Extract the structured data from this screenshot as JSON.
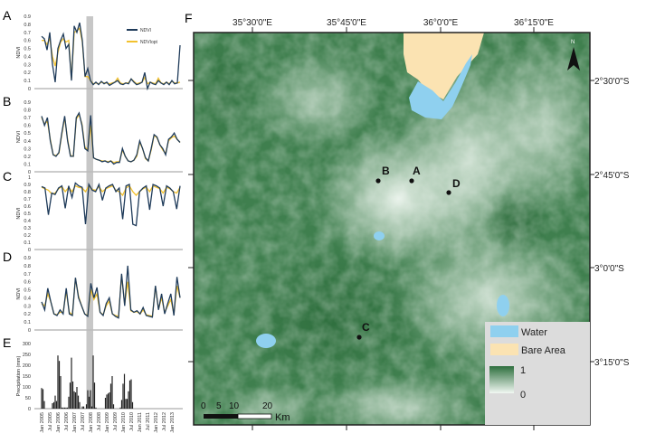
{
  "colors": {
    "ndvi": "#1f3b5a",
    "ndvi_opt": "#f2c12e",
    "band": "#bdbdbd",
    "water": "#8fd0ef",
    "bare": "#fbe3b2",
    "green_dark": "#2e6f3e",
    "green_light": "#e6f2e8",
    "bars": "#222222"
  },
  "timeseries": {
    "x_tick_labels": [
      "Jan 2005",
      "Jul 2005",
      "Jan 2006",
      "Jul 2006",
      "Jan 2007",
      "Jul 2007",
      "Jan 2008",
      "Jul 2008",
      "Jan 2009",
      "Jul 2009",
      "Jan 2010",
      "Jul 2010",
      "Jan 2011",
      "Jul 2011",
      "Jan 2012",
      "Jul 2012",
      "Jan 2013"
    ],
    "highlight_period": [
      "Oct 2007",
      "Mar 2008"
    ],
    "legend": {
      "ndvi": "NDVI",
      "ndvi_opt": "NDVIopt"
    }
  },
  "chart_data": [
    {
      "panel": "A",
      "type": "line",
      "ylabel": "NDVI",
      "ylim": [
        0,
        0.9
      ],
      "yticks": [
        "0",
        "0.1",
        "0.2",
        "0.3",
        "0.4",
        "0.5",
        "0.6",
        "0.7",
        "0.8",
        "0.9"
      ],
      "x_range": [
        "Jan 2005",
        "Jul 2013"
      ],
      "series": [
        {
          "name": "NDVI",
          "values": [
            0.65,
            0.62,
            0.48,
            0.7,
            0.3,
            0.08,
            0.5,
            0.6,
            0.68,
            0.5,
            0.55,
            0.1,
            0.78,
            0.7,
            0.82,
            0.6,
            0.15,
            0.25,
            0.1,
            0.05,
            0.08,
            0.05,
            0.09,
            0.06,
            0.08,
            0.04,
            0.06,
            0.08,
            0.1,
            0.06,
            0.05,
            0.07,
            0.06,
            0.12,
            0.08,
            0.05,
            0.06,
            0.08,
            0.2,
            0.0,
            0.08,
            0.06,
            0.05,
            0.1,
            0.07,
            0.05,
            0.08,
            0.05,
            0.1,
            0.06,
            0.07,
            0.54
          ]
        },
        {
          "name": "NDVIopt",
          "values": [
            0.6,
            0.6,
            0.55,
            0.62,
            0.4,
            0.28,
            0.45,
            0.58,
            0.62,
            0.58,
            0.6,
            0.12,
            0.7,
            0.72,
            0.75,
            0.58,
            0.15,
            0.15,
            0.1,
            0.06,
            0.07,
            0.06,
            0.08,
            0.07,
            0.07,
            0.06,
            0.07,
            0.08,
            0.13,
            0.07,
            0.06,
            0.07,
            0.07,
            0.12,
            0.09,
            0.06,
            0.07,
            0.08,
            0.14,
            0.06,
            0.08,
            0.07,
            0.06,
            0.13,
            0.07,
            0.06,
            0.08,
            0.06,
            0.09,
            0.07,
            0.07,
            0.08
          ]
        }
      ]
    },
    {
      "panel": "B",
      "type": "line",
      "ylabel": "NDVI",
      "ylim": [
        0,
        0.9
      ],
      "yticks": [
        "0",
        "0.1",
        "0.2",
        "0.3",
        "0.4",
        "0.5",
        "0.6",
        "0.7",
        "0.8",
        "0.9"
      ],
      "x_range": [
        "Jan 2005",
        "Jul 2013"
      ],
      "series": [
        {
          "name": "NDVI",
          "values": [
            0.72,
            0.6,
            0.7,
            0.4,
            0.22,
            0.2,
            0.25,
            0.5,
            0.72,
            0.4,
            0.2,
            0.2,
            0.7,
            0.76,
            0.6,
            0.3,
            0.27,
            0.73,
            0.18,
            0.16,
            0.15,
            0.13,
            0.14,
            0.12,
            0.14,
            0.1,
            0.12,
            0.12,
            0.3,
            0.2,
            0.14,
            0.13,
            0.15,
            0.22,
            0.4,
            0.3,
            0.18,
            0.14,
            0.3,
            0.48,
            0.45,
            0.35,
            0.3,
            0.22,
            0.42,
            0.45,
            0.5,
            0.42,
            0.38
          ]
        },
        {
          "name": "NDVIopt",
          "values": [
            0.7,
            0.62,
            0.65,
            0.42,
            0.22,
            0.21,
            0.24,
            0.48,
            0.7,
            0.42,
            0.21,
            0.2,
            0.68,
            0.74,
            0.62,
            0.32,
            0.28,
            0.6,
            0.18,
            0.16,
            0.15,
            0.14,
            0.14,
            0.13,
            0.14,
            0.12,
            0.13,
            0.13,
            0.28,
            0.2,
            0.14,
            0.13,
            0.15,
            0.2,
            0.38,
            0.3,
            0.17,
            0.14,
            0.28,
            0.47,
            0.44,
            0.35,
            0.28,
            0.24,
            0.4,
            0.44,
            0.46,
            0.42,
            0.38
          ]
        }
      ]
    },
    {
      "panel": "C",
      "type": "line",
      "ylabel": "NDVI",
      "ylim": [
        0,
        1
      ],
      "yticks": [
        "0",
        "0.1",
        "0.2",
        "0.3",
        "0.4",
        "0.5",
        "0.6",
        "0.7",
        "0.8",
        "0.9",
        "1"
      ],
      "x_range": [
        "Jan 2005",
        "Jul 2013"
      ],
      "series": [
        {
          "name": "NDVI",
          "values": [
            0.87,
            0.85,
            0.48,
            0.78,
            0.76,
            0.85,
            0.88,
            0.57,
            0.88,
            0.72,
            0.92,
            0.88,
            0.86,
            0.35,
            0.9,
            0.82,
            0.8,
            0.9,
            0.68,
            0.85,
            0.88,
            0.9,
            0.8,
            0.85,
            0.42,
            0.88,
            0.9,
            0.35,
            0.33,
            0.8,
            0.85,
            0.88,
            0.55,
            0.9,
            0.88,
            0.85,
            0.6,
            0.88,
            0.85,
            0.8,
            0.56,
            0.88
          ]
        },
        {
          "name": "NDVIopt",
          "values": [
            0.86,
            0.84,
            0.82,
            0.77,
            0.78,
            0.84,
            0.87,
            0.8,
            0.86,
            0.8,
            0.88,
            0.86,
            0.85,
            0.8,
            0.88,
            0.83,
            0.82,
            0.87,
            0.8,
            0.84,
            0.86,
            0.88,
            0.82,
            0.8,
            0.75,
            0.85,
            0.88,
            0.8,
            0.75,
            0.8,
            0.84,
            0.86,
            0.8,
            0.88,
            0.86,
            0.84,
            0.78,
            0.86,
            0.84,
            0.8,
            0.78,
            0.86
          ]
        }
      ]
    },
    {
      "panel": "D",
      "type": "line",
      "ylabel": "NDVI",
      "ylim": [
        0,
        0.9
      ],
      "yticks": [
        "0",
        "0.1",
        "0.2",
        "0.3",
        "0.4",
        "0.5",
        "0.6",
        "0.7",
        "0.8",
        "0.9"
      ],
      "x_range": [
        "Jan 2005",
        "Jul 2013"
      ],
      "series": [
        {
          "name": "NDVI",
          "values": [
            0.35,
            0.25,
            0.52,
            0.35,
            0.2,
            0.18,
            0.25,
            0.2,
            0.52,
            0.2,
            0.18,
            0.65,
            0.4,
            0.3,
            0.2,
            0.17,
            0.58,
            0.4,
            0.53,
            0.22,
            0.18,
            0.33,
            0.4,
            0.2,
            0.17,
            0.15,
            0.7,
            0.3,
            0.8,
            0.25,
            0.22,
            0.24,
            0.2,
            0.28,
            0.18,
            0.17,
            0.16,
            0.55,
            0.25,
            0.45,
            0.2,
            0.33,
            0.45,
            0.18,
            0.66,
            0.4
          ]
        },
        {
          "name": "NDVIopt",
          "values": [
            0.33,
            0.3,
            0.45,
            0.35,
            0.2,
            0.19,
            0.22,
            0.22,
            0.48,
            0.22,
            0.19,
            0.64,
            0.42,
            0.3,
            0.2,
            0.18,
            0.5,
            0.38,
            0.45,
            0.22,
            0.19,
            0.3,
            0.36,
            0.2,
            0.18,
            0.17,
            0.68,
            0.32,
            0.6,
            0.24,
            0.22,
            0.23,
            0.2,
            0.25,
            0.19,
            0.18,
            0.17,
            0.54,
            0.26,
            0.4,
            0.22,
            0.3,
            0.38,
            0.2,
            0.55,
            0.4
          ]
        }
      ]
    },
    {
      "panel": "E",
      "type": "bar",
      "ylabel": "Precipitation (mm)",
      "ylim": [
        0,
        300
      ],
      "yticks": [
        "0",
        "50",
        "100",
        "150",
        "200",
        "250",
        "300"
      ],
      "x_start": "Jan 2005",
      "x_step": "month",
      "values": [
        95,
        90,
        35,
        0,
        0,
        0,
        0,
        0,
        25,
        30,
        60,
        35,
        245,
        220,
        150,
        5,
        5,
        5,
        5,
        5,
        55,
        120,
        235,
        125,
        80,
        75,
        100,
        60,
        30,
        0,
        10,
        10,
        0,
        20,
        85,
        55,
        85,
        10,
        245,
        120,
        5,
        0,
        0,
        0,
        0,
        0,
        0,
        50,
        65,
        70,
        75,
        115,
        150,
        20,
        0,
        0,
        0,
        0,
        5,
        40,
        115,
        160,
        45,
        45,
        80,
        130,
        135,
        30
      ]
    }
  ],
  "map": {
    "panel_label": "F",
    "lon_labels": [
      "35°30'0\"E",
      "35°45'0\"E",
      "36°0'0\"E",
      "36°15'0\"E"
    ],
    "lat_labels": [
      "2°30'0\"S",
      "2°45'0\"S",
      "3°0'0\"S",
      "3°15'0\"S"
    ],
    "points": [
      "A",
      "B",
      "C",
      "D"
    ],
    "north_label": "N",
    "legend": {
      "water": "Water",
      "bare": "Bare Area",
      "max": "1",
      "min": "0"
    },
    "scale": {
      "ticks": [
        "0",
        "5",
        "10",
        "20"
      ],
      "unit": "Km"
    }
  }
}
